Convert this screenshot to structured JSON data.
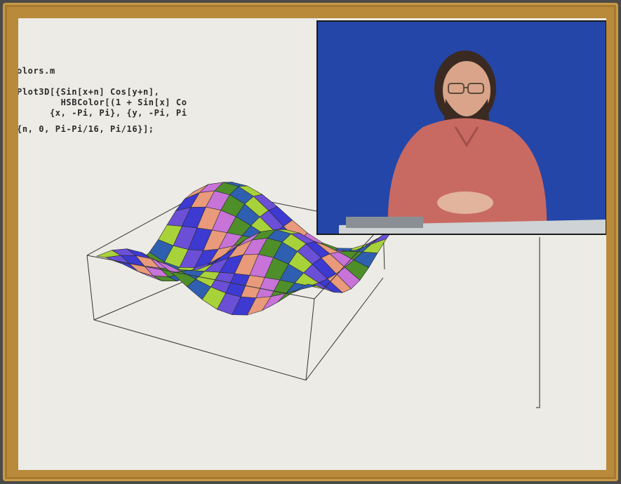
{
  "notebook": {
    "code_lines": [
      "olors.m",
      "Plot3D[{Sin[x+n] Cos[y+n],",
      "        HSBColor[(1 + Sin[x] Co",
      "      {x, -Pi, Pi}, {y, -Pi, Pi",
      "{n, 0, Pi-Pi/16, Pi/16}];"
    ]
  },
  "plot": {
    "type": "3d-surface",
    "surface_colors": [
      "#a8d23a",
      "#6b4fd6",
      "#3c3ad0",
      "#e89a7a",
      "#c773d8",
      "#4e8f2a",
      "#2f5fb0"
    ]
  },
  "video_inset": {
    "background": "#2446a8",
    "presenter_shirt": "#c86a62",
    "desk": "#cfd3d6"
  }
}
